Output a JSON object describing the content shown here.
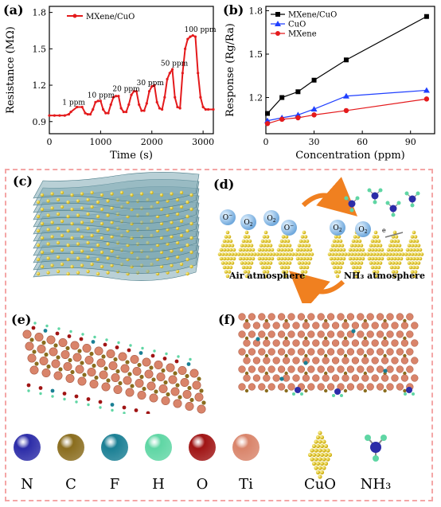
{
  "panel_labels": {
    "a": "(a)",
    "b": "(b)",
    "c": "(c)",
    "d": "(d)",
    "e": "(e)",
    "f": "(f)"
  },
  "chart_data": [
    {
      "type": "line",
      "xlabel": "Time (s)",
      "ylabel": "Resistance (MΩ)",
      "xlim": [
        0,
        3200
      ],
      "ylim": [
        0.8,
        1.85
      ],
      "xticks": [
        0,
        1000,
        2000,
        3000
      ],
      "yticks": [
        0.9,
        1.2,
        1.5,
        1.8
      ],
      "legend": "top-left",
      "series": [
        {
          "name": "MXene/CuO",
          "color": "#e41a1c",
          "x": [
            0,
            100,
            200,
            300,
            380,
            420,
            540,
            640,
            700,
            750,
            800,
            850,
            900,
            950,
            1000,
            1050,
            1100,
            1150,
            1200,
            1250,
            1300,
            1350,
            1400,
            1450,
            1500,
            1550,
            1600,
            1650,
            1700,
            1750,
            1800,
            1850,
            1900,
            1950,
            2000,
            2050,
            2100,
            2150,
            2200,
            2250,
            2300,
            2350,
            2400,
            2450,
            2500,
            2550,
            2600,
            2650,
            2700,
            2750,
            2800,
            2850,
            2900,
            2950,
            3000,
            3050,
            3100,
            3200
          ],
          "y": [
            0.95,
            0.95,
            0.95,
            0.95,
            0.96,
            0.98,
            1.02,
            1.02,
            0.97,
            0.96,
            0.96,
            1.0,
            1.06,
            1.07,
            1.07,
            1.0,
            0.97,
            0.97,
            1.04,
            1.1,
            1.11,
            1.11,
            1.01,
            0.98,
            0.98,
            1.04,
            1.12,
            1.15,
            1.15,
            1.04,
            0.99,
            0.99,
            1.05,
            1.15,
            1.19,
            1.2,
            1.06,
            1.01,
            1.0,
            1.1,
            1.25,
            1.3,
            1.33,
            1.1,
            1.02,
            1.01,
            1.3,
            1.5,
            1.58,
            1.6,
            1.61,
            1.6,
            1.3,
            1.1,
            1.02,
            1.0,
            1.0,
            1.0
          ]
        }
      ],
      "annotations": [
        "1 ppm",
        "10 ppm",
        "20 ppm",
        "30 ppm",
        "50 ppm",
        "100 ppm"
      ]
    },
    {
      "type": "line",
      "xlabel": "Concentration (ppm)",
      "ylabel": "Response (Rg/Ra)",
      "xlim": [
        0,
        105
      ],
      "ylim": [
        0.95,
        1.83
      ],
      "xticks": [
        0,
        30,
        60,
        90
      ],
      "yticks": [
        1.2,
        1.5,
        1.8
      ],
      "legend": "top-left",
      "x": [
        1,
        10,
        20,
        30,
        50,
        100
      ],
      "series": [
        {
          "name": "MXene/CuO",
          "color": "#000000",
          "marker": "square",
          "values": [
            1.09,
            1.2,
            1.24,
            1.32,
            1.46,
            1.76
          ]
        },
        {
          "name": "CuO",
          "color": "#1f3fff",
          "marker": "triangle",
          "values": [
            1.04,
            1.06,
            1.08,
            1.12,
            1.21,
            1.25
          ]
        },
        {
          "name": "MXene",
          "color": "#e41a1c",
          "marker": "circle",
          "values": [
            1.02,
            1.05,
            1.06,
            1.08,
            1.11,
            1.19
          ]
        }
      ]
    }
  ],
  "panel_d": {
    "left_caption": "Air atmosphere",
    "right_caption": "NH₃ atmosphere"
  },
  "legend_atoms": [
    {
      "label": "N",
      "color": "#2c2ca8"
    },
    {
      "label": "C",
      "color": "#8a6d1e"
    },
    {
      "label": "F",
      "color": "#1a7f94"
    },
    {
      "label": "H",
      "color": "#5fd6a4"
    },
    {
      "label": "O",
      "color": "#a01414"
    },
    {
      "label": "Ti",
      "color": "#d9846a"
    }
  ],
  "legend_extra": {
    "cuo": "CuO",
    "nh3": "NH₃"
  }
}
